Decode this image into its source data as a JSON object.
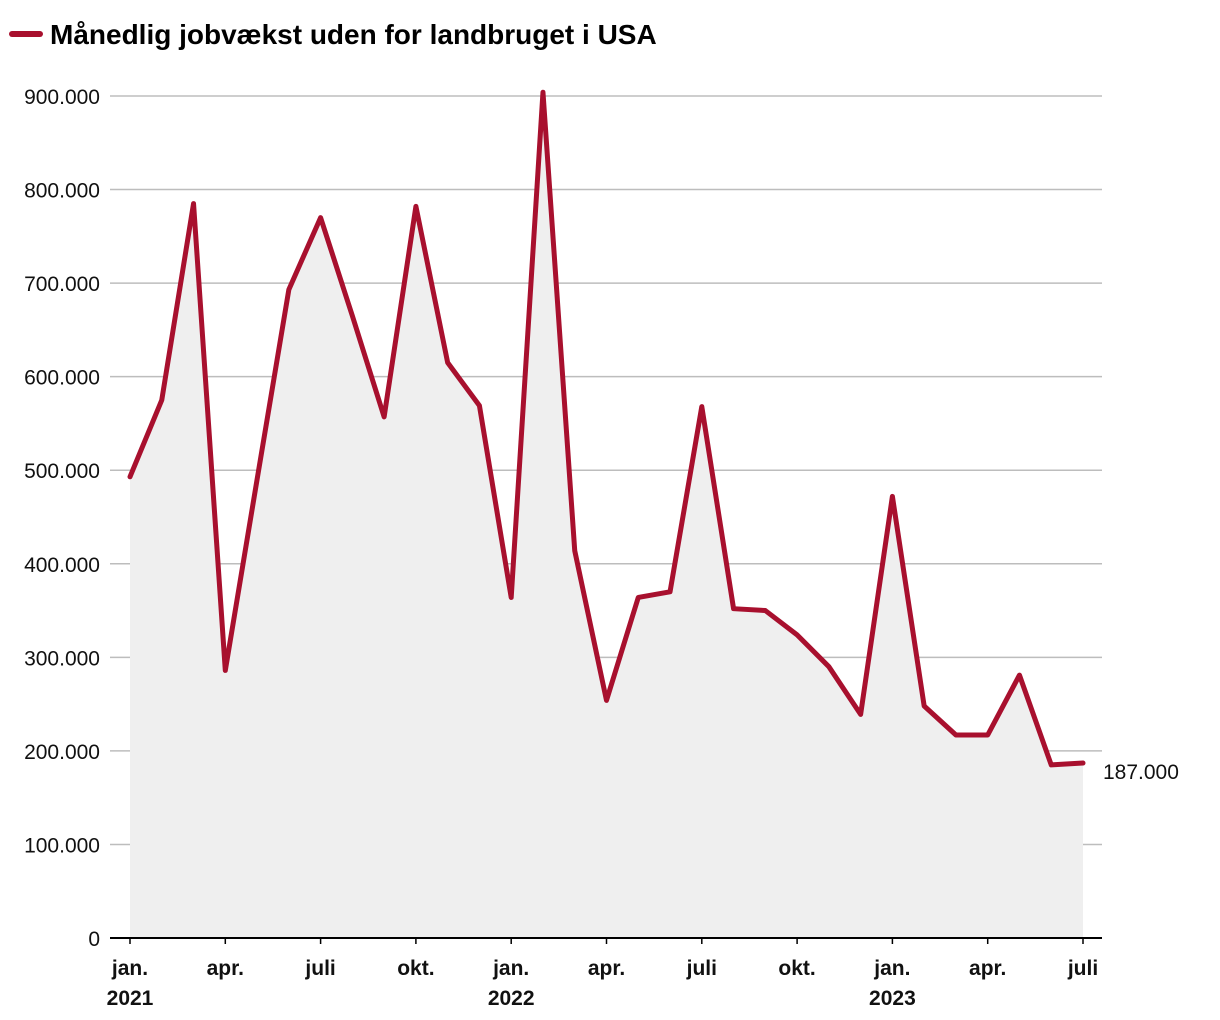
{
  "colors": {
    "line": "#a8102e",
    "area": "#efefef",
    "grid": "#bdbdbd",
    "axis": "#000000"
  },
  "chart_data": {
    "type": "area",
    "title": "Månedlig jobvækst uden for landbruget i USA",
    "legend": [
      {
        "name": "Månedlig jobvækst uden for landbruget i USA",
        "marker": "line"
      }
    ],
    "legend_position": "top-left",
    "xlabel": "",
    "ylabel": "",
    "ylim": [
      0,
      900000
    ],
    "yticks": [
      {
        "value": 0,
        "label": "0"
      },
      {
        "value": 100000,
        "label": "100.000"
      },
      {
        "value": 200000,
        "label": "200.000"
      },
      {
        "value": 300000,
        "label": "300.000"
      },
      {
        "value": 400000,
        "label": "400.000"
      },
      {
        "value": 500000,
        "label": "500.000"
      },
      {
        "value": 600000,
        "label": "600.000"
      },
      {
        "value": 700000,
        "label": "700.000"
      },
      {
        "value": 800000,
        "label": "800.000"
      },
      {
        "value": 900000,
        "label": "900.000"
      }
    ],
    "grid": true,
    "xticks": [
      {
        "index": 0,
        "label": "jan.",
        "year": "2021"
      },
      {
        "index": 3,
        "label": "apr.",
        "year": ""
      },
      {
        "index": 6,
        "label": "juli",
        "year": ""
      },
      {
        "index": 9,
        "label": "okt.",
        "year": ""
      },
      {
        "index": 12,
        "label": "jan.",
        "year": "2022"
      },
      {
        "index": 15,
        "label": "apr.",
        "year": ""
      },
      {
        "index": 18,
        "label": "juli",
        "year": ""
      },
      {
        "index": 21,
        "label": "okt.",
        "year": ""
      },
      {
        "index": 24,
        "label": "jan.",
        "year": "2023"
      },
      {
        "index": 27,
        "label": "apr.",
        "year": ""
      },
      {
        "index": 30,
        "label": "juli",
        "year": ""
      }
    ],
    "series": [
      {
        "name": "Månedlig jobvækst uden for landbruget i USA",
        "values": [
          493000,
          575000,
          785000,
          286000,
          490000,
          693000,
          770000,
          665000,
          557000,
          782000,
          615000,
          569000,
          364000,
          904000,
          414000,
          254000,
          364000,
          370000,
          568000,
          352000,
          350000,
          324000,
          290000,
          239000,
          472000,
          248000,
          217000,
          217000,
          281000,
          185000,
          187000
        ]
      }
    ],
    "end_label": "187.000"
  }
}
